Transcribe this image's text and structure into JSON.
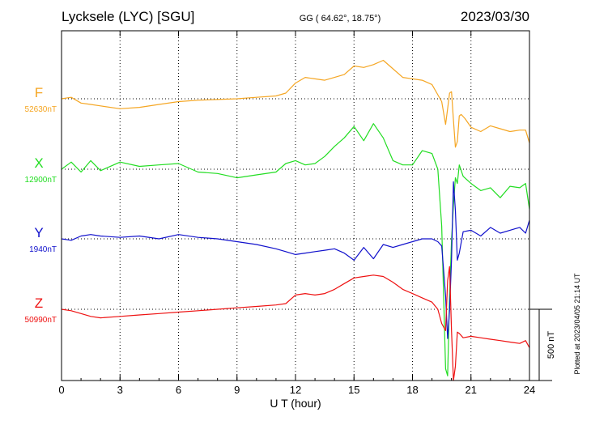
{
  "header": {
    "station": "Lycksele (LYC)  [SGU]",
    "coords": "GG ( 64.62°,  18.75°)",
    "date": "2023/03/30"
  },
  "side_note": "Plotted at 2023/04/05 21:14 UT",
  "scale_label": "500 nT",
  "chart_data": {
    "type": "line",
    "xlabel": "U T (hour)",
    "xlim": [
      0,
      24
    ],
    "xticks": [
      "0",
      "3",
      "6",
      "9",
      "12",
      "15",
      "18",
      "21",
      "24"
    ],
    "grid": "dotted",
    "scale_bar_nT": 500,
    "series": [
      {
        "name": "F",
        "baseline": "52630nT",
        "color": "#f5a623",
        "x": [
          0,
          0.5,
          1,
          1.5,
          2,
          3,
          4,
          5,
          6,
          7,
          8,
          9,
          10,
          11,
          11.5,
          12,
          12.5,
          13,
          13.5,
          14,
          14.5,
          15,
          15.5,
          16,
          16.5,
          17,
          17.5,
          18,
          18.5,
          19,
          19.5,
          19.7,
          19.8,
          19.9,
          20.0,
          20.1,
          20.2,
          20.3,
          20.4,
          20.5,
          20.7,
          21,
          21.5,
          22,
          22.5,
          23,
          23.5,
          23.8,
          24
        ],
        "y": [
          0,
          10,
          -30,
          -40,
          -50,
          -70,
          -60,
          -40,
          -20,
          -10,
          -5,
          0,
          10,
          20,
          40,
          110,
          150,
          140,
          130,
          150,
          170,
          230,
          220,
          240,
          270,
          210,
          150,
          140,
          130,
          100,
          -20,
          -180,
          -70,
          40,
          50,
          -150,
          -340,
          -300,
          -120,
          -110,
          -140,
          -200,
          -230,
          -190,
          -210,
          -230,
          -220,
          -220,
          -310
        ]
      },
      {
        "name": "X",
        "baseline": "12900nT",
        "color": "#22dd22",
        "x": [
          0,
          0.5,
          1,
          1.5,
          2,
          3,
          4,
          5,
          6,
          7,
          8,
          9,
          10,
          11,
          11.5,
          12,
          12.5,
          13,
          13.5,
          14,
          14.5,
          15,
          15.5,
          16,
          16.5,
          17,
          17.5,
          18,
          18.5,
          19,
          19.3,
          19.5,
          19.7,
          19.8,
          19.9,
          20.0,
          20.1,
          20.2,
          20.3,
          20.4,
          20.6,
          21,
          21.5,
          22,
          22.5,
          23,
          23.5,
          23.8,
          24
        ],
        "y": [
          0,
          50,
          -20,
          60,
          -10,
          50,
          20,
          30,
          40,
          -20,
          -30,
          -60,
          -40,
          -20,
          40,
          60,
          30,
          40,
          90,
          160,
          220,
          300,
          200,
          320,
          220,
          60,
          30,
          30,
          130,
          110,
          0,
          -400,
          -1400,
          -1450,
          -900,
          -500,
          -250,
          -60,
          -100,
          30,
          -50,
          -100,
          -150,
          -130,
          -200,
          -120,
          -130,
          -100,
          -280
        ]
      },
      {
        "name": "Y",
        "baseline": "1940nT",
        "color": "#1111cc",
        "x": [
          0,
          0.5,
          1,
          1.5,
          2,
          3,
          4,
          5,
          6,
          7,
          8,
          9,
          10,
          11,
          11.5,
          12,
          12.5,
          13,
          13.5,
          14,
          14.5,
          15,
          15.5,
          16,
          16.5,
          17,
          17.5,
          18,
          18.5,
          19,
          19.3,
          19.5,
          19.7,
          19.8,
          19.9,
          20.0,
          20.1,
          20.2,
          20.3,
          20.4,
          20.6,
          21,
          21.5,
          22,
          22.5,
          23,
          23.5,
          23.8,
          24
        ],
        "y": [
          0,
          -10,
          20,
          30,
          20,
          10,
          20,
          0,
          30,
          10,
          0,
          -20,
          -40,
          -70,
          -90,
          -110,
          -100,
          -90,
          -80,
          -70,
          -100,
          -150,
          -60,
          -140,
          -40,
          -60,
          -40,
          -20,
          0,
          0,
          -20,
          -50,
          -400,
          -700,
          -500,
          -150,
          400,
          200,
          -150,
          -100,
          50,
          60,
          20,
          80,
          40,
          60,
          80,
          40,
          130
        ]
      },
      {
        "name": "Z",
        "baseline": "50990nT",
        "color": "#ee1111",
        "x": [
          0,
          0.5,
          1,
          1.5,
          2,
          3,
          4,
          5,
          6,
          7,
          8,
          9,
          10,
          11,
          11.5,
          12,
          12.5,
          13,
          13.5,
          14,
          14.5,
          15,
          15.5,
          16,
          16.5,
          17,
          17.5,
          18,
          18.5,
          19,
          19.3,
          19.5,
          19.7,
          19.8,
          19.9,
          20.0,
          20.1,
          20.2,
          20.3,
          20.4,
          20.6,
          21,
          21.5,
          22,
          22.5,
          23,
          23.5,
          23.8,
          24
        ],
        "y": [
          0,
          -10,
          -30,
          -50,
          -60,
          -50,
          -40,
          -30,
          -20,
          -10,
          0,
          10,
          20,
          30,
          40,
          100,
          110,
          100,
          110,
          140,
          180,
          220,
          230,
          240,
          230,
          190,
          140,
          110,
          80,
          50,
          0,
          -100,
          -150,
          200,
          300,
          -150,
          -500,
          -400,
          -160,
          -170,
          -200,
          -190,
          -200,
          -210,
          -220,
          -230,
          -240,
          -220,
          -270
        ]
      }
    ]
  }
}
